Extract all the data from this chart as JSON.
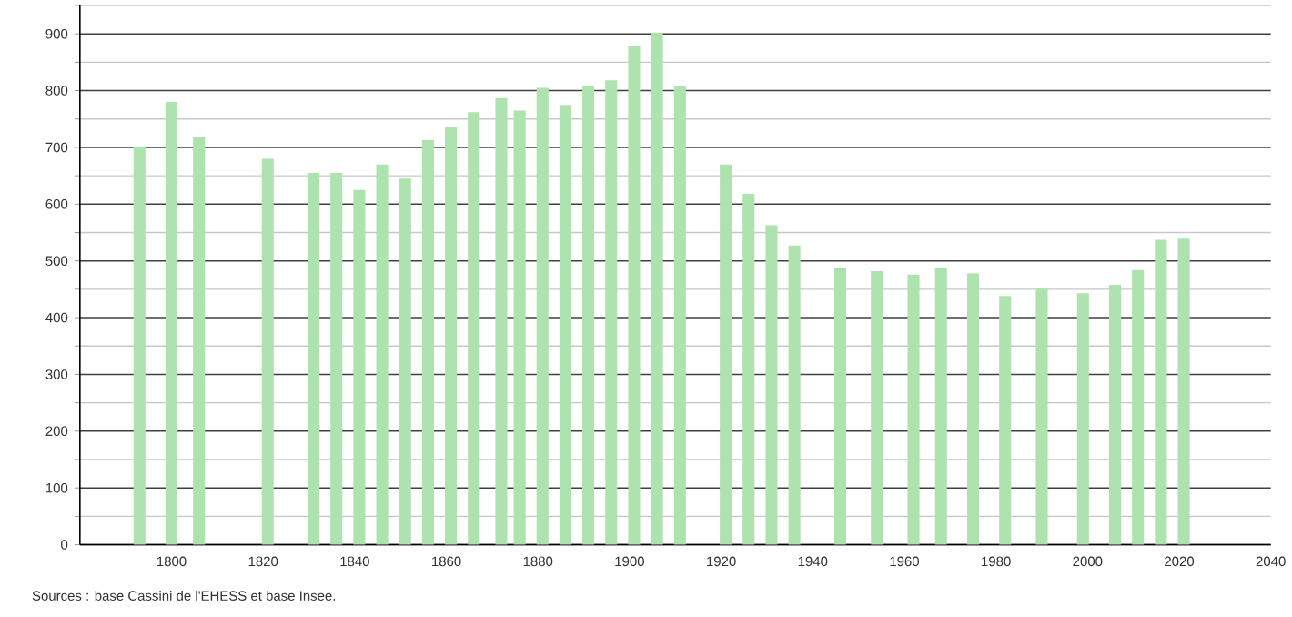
{
  "chart_data": {
    "type": "bar",
    "x": [
      1793,
      1800,
      1806,
      1821,
      1831,
      1836,
      1841,
      1846,
      1851,
      1856,
      1861,
      1866,
      1872,
      1876,
      1881,
      1886,
      1891,
      1896,
      1901,
      1906,
      1911,
      1921,
      1926,
      1931,
      1936,
      1946,
      1954,
      1962,
      1968,
      1975,
      1982,
      1990,
      1999,
      2006,
      2011,
      2016,
      2021
    ],
    "values": [
      700,
      780,
      718,
      680,
      655,
      655,
      625,
      670,
      645,
      713,
      735,
      762,
      787,
      765,
      805,
      775,
      808,
      818,
      878,
      902,
      808,
      670,
      618,
      563,
      527,
      488,
      482,
      476,
      487,
      478,
      438,
      451,
      443,
      458,
      484,
      537,
      539
    ],
    "color": "#aee2ae",
    "xlim": [
      1780,
      2040
    ],
    "xticks": [
      1800,
      1820,
      1840,
      1860,
      1880,
      1900,
      1920,
      1940,
      1960,
      1980,
      2000,
      2020,
      2040
    ],
    "ylim": [
      0,
      950
    ],
    "yticks": [
      0,
      100,
      200,
      300,
      400,
      500,
      600,
      700,
      800,
      900
    ],
    "grid": "y",
    "annotations": [
      "Sources : base Cassini de l'EHESS et base Insee."
    ]
  }
}
